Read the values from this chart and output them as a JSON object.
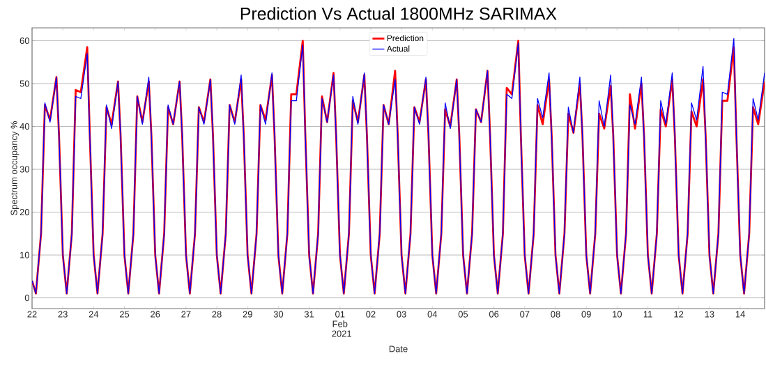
{
  "chart_data": {
    "type": "line",
    "title": "Prediction Vs Actual 1800MHz SARIMAX",
    "xlabel": "Date",
    "ylabel": "Spectrum occupancy %",
    "x": [
      "2021-01-22T00:00",
      "2021-01-22T03:00",
      "2021-01-22T07:00",
      "2021-01-22T10:00",
      "2021-01-22T14:00",
      "2021-01-22T19:00",
      "2021-01-22T21:00",
      "2021-01-23T00:00",
      "2021-01-23T03:00",
      "2021-01-23T07:00",
      "2021-01-23T10:00",
      "2021-01-23T14:00",
      "2021-01-23T19:00",
      "2021-01-23T21:00",
      "2021-01-24T00:00",
      "2021-01-24T03:00",
      "2021-01-24T07:00",
      "2021-01-24T10:00",
      "2021-01-24T14:00",
      "2021-01-24T19:00",
      "2021-01-24T21:00",
      "2021-01-25T00:00",
      "2021-01-25T03:00",
      "2021-01-25T07:00",
      "2021-01-25T10:00",
      "2021-01-25T14:00",
      "2021-01-25T19:00",
      "2021-01-25T21:00",
      "2021-01-26T00:00",
      "2021-01-26T03:00",
      "2021-01-26T07:00",
      "2021-01-26T10:00",
      "2021-01-26T14:00",
      "2021-01-26T19:00",
      "2021-01-26T21:00",
      "2021-01-27T00:00",
      "2021-01-27T03:00",
      "2021-01-27T07:00",
      "2021-01-27T10:00",
      "2021-01-27T14:00",
      "2021-01-27T19:00",
      "2021-01-27T21:00",
      "2021-01-28T00:00",
      "2021-01-28T03:00",
      "2021-01-28T07:00",
      "2021-01-28T10:00",
      "2021-01-28T14:00",
      "2021-01-28T19:00",
      "2021-01-28T21:00",
      "2021-01-29T00:00",
      "2021-01-29T03:00",
      "2021-01-29T07:00",
      "2021-01-29T10:00",
      "2021-01-29T14:00",
      "2021-01-29T19:00",
      "2021-01-29T21:00",
      "2021-01-30T00:00",
      "2021-01-30T03:00",
      "2021-01-30T07:00",
      "2021-01-30T10:00",
      "2021-01-30T14:00",
      "2021-01-30T19:00",
      "2021-01-30T21:00",
      "2021-01-31T00:00",
      "2021-01-31T03:00",
      "2021-01-31T07:00",
      "2021-01-31T10:00",
      "2021-01-31T14:00",
      "2021-01-31T19:00",
      "2021-01-31T21:00",
      "2021-02-01T00:00",
      "2021-02-01T03:00",
      "2021-02-01T07:00",
      "2021-02-01T10:00",
      "2021-02-01T14:00",
      "2021-02-01T19:00",
      "2021-02-01T21:00",
      "2021-02-02T00:00",
      "2021-02-02T03:00",
      "2021-02-02T07:00",
      "2021-02-02T10:00",
      "2021-02-02T14:00",
      "2021-02-02T19:00",
      "2021-02-02T21:00",
      "2021-02-03T00:00",
      "2021-02-03T03:00",
      "2021-02-03T07:00",
      "2021-02-03T10:00",
      "2021-02-03T14:00",
      "2021-02-03T19:00",
      "2021-02-03T21:00",
      "2021-02-04T00:00",
      "2021-02-04T03:00",
      "2021-02-04T07:00",
      "2021-02-04T10:00",
      "2021-02-04T14:00",
      "2021-02-04T19:00",
      "2021-02-04T21:00",
      "2021-02-05T00:00",
      "2021-02-05T03:00",
      "2021-02-05T07:00",
      "2021-02-05T10:00",
      "2021-02-05T14:00",
      "2021-02-05T19:00",
      "2021-02-05T21:00",
      "2021-02-06T00:00",
      "2021-02-06T03:00",
      "2021-02-06T07:00",
      "2021-02-06T10:00",
      "2021-02-06T14:00",
      "2021-02-06T19:00",
      "2021-02-06T21:00",
      "2021-02-07T00:00",
      "2021-02-07T03:00",
      "2021-02-07T07:00",
      "2021-02-07T10:00",
      "2021-02-07T14:00",
      "2021-02-07T19:00",
      "2021-02-07T21:00",
      "2021-02-08T00:00",
      "2021-02-08T03:00",
      "2021-02-08T07:00",
      "2021-02-08T10:00",
      "2021-02-08T14:00",
      "2021-02-08T19:00",
      "2021-02-08T21:00",
      "2021-02-09T00:00",
      "2021-02-09T03:00",
      "2021-02-09T07:00",
      "2021-02-09T10:00",
      "2021-02-09T14:00",
      "2021-02-09T19:00",
      "2021-02-09T21:00",
      "2021-02-10T00:00",
      "2021-02-10T03:00",
      "2021-02-10T07:00",
      "2021-02-10T10:00",
      "2021-02-10T14:00",
      "2021-02-10T19:00",
      "2021-02-10T21:00",
      "2021-02-11T00:00",
      "2021-02-11T03:00",
      "2021-02-11T07:00",
      "2021-02-11T10:00",
      "2021-02-11T14:00",
      "2021-02-11T19:00",
      "2021-02-11T21:00",
      "2021-02-12T00:00",
      "2021-02-12T03:00",
      "2021-02-12T07:00",
      "2021-02-12T10:00",
      "2021-02-12T14:00",
      "2021-02-12T19:00",
      "2021-02-12T21:00",
      "2021-02-13T00:00",
      "2021-02-13T03:00",
      "2021-02-13T07:00",
      "2021-02-13T10:00",
      "2021-02-13T14:00",
      "2021-02-13T19:00",
      "2021-02-13T21:00",
      "2021-02-14T00:00",
      "2021-02-14T03:00",
      "2021-02-14T07:00",
      "2021-02-14T10:00",
      "2021-02-14T14:00",
      "2021-02-14T19:00"
    ],
    "series": [
      {
        "name": "Prediction",
        "color": "#ff0000",
        "values": [
          4,
          1,
          15,
          45,
          41.5,
          51.5,
          38,
          10,
          1,
          15,
          48.5,
          48,
          58.5,
          38,
          10,
          1,
          15,
          44.5,
          40.5,
          50.5,
          38,
          10,
          1,
          15,
          47,
          41,
          50.5,
          38,
          10,
          1,
          15,
          44.5,
          40.5,
          50.5,
          38,
          10,
          1,
          15,
          44.5,
          41,
          51,
          38,
          10,
          1,
          15,
          45,
          41,
          51,
          38,
          10,
          1,
          15,
          45,
          41.5,
          52,
          38,
          10,
          1,
          15,
          47.5,
          47.5,
          60,
          38,
          10,
          1,
          15,
          47,
          41,
          52.5,
          38,
          10,
          1,
          15,
          46,
          41,
          52,
          38,
          10,
          1,
          15,
          45,
          40.5,
          53,
          38,
          10,
          1,
          15,
          44.5,
          41,
          51,
          38,
          10,
          1,
          15,
          44,
          40,
          51,
          38,
          10,
          1,
          15,
          44,
          41,
          53,
          38,
          10,
          1,
          15,
          49,
          47.5,
          60,
          38,
          10,
          1,
          15,
          45,
          40.5,
          51,
          38,
          10,
          1,
          15,
          43,
          38.5,
          50,
          38,
          10,
          1,
          15,
          43,
          39.5,
          49.5,
          38,
          10,
          1,
          15,
          47.5,
          39.5,
          50,
          38,
          10,
          1,
          15,
          44,
          40,
          51,
          38,
          10,
          1,
          15,
          43.5,
          40,
          51,
          38,
          10,
          1,
          15,
          46,
          46,
          58.5,
          38,
          10,
          1,
          15,
          44.5,
          40.5,
          50.5
        ]
      },
      {
        "name": "Actual",
        "color": "#0000ff",
        "values": [
          4,
          1,
          15,
          45.5,
          41,
          51.5,
          38,
          10,
          1,
          15,
          47,
          46.5,
          57,
          38,
          10,
          1,
          15,
          45,
          39.5,
          50.5,
          38,
          10,
          1,
          15,
          47,
          40.5,
          51.5,
          38,
          10,
          1,
          15,
          45,
          40.5,
          50.5,
          38,
          10,
          1,
          15,
          44.5,
          40.5,
          51,
          38,
          10,
          1,
          15,
          45,
          40.5,
          52,
          38,
          10,
          1,
          15,
          45,
          40.5,
          52.5,
          38,
          10,
          1,
          15,
          46,
          46,
          59,
          38,
          10,
          1,
          15,
          46.5,
          41,
          52,
          38,
          10,
          1,
          15,
          47,
          40.5,
          52.5,
          38,
          10,
          1,
          15,
          45,
          40.5,
          51,
          38,
          10,
          1,
          15,
          44.5,
          40.5,
          51.5,
          38,
          10,
          1,
          15,
          45.5,
          39.5,
          51,
          38,
          10,
          1,
          15,
          44,
          41,
          53,
          38,
          10,
          1,
          15,
          47.5,
          46.5,
          59.5,
          38,
          10,
          1,
          15,
          46.5,
          42,
          52.5,
          38,
          10,
          1,
          15,
          44.5,
          38.5,
          51.5,
          38,
          10,
          1,
          15,
          46,
          40,
          52,
          38,
          10,
          1,
          15,
          45,
          40.5,
          51.5,
          38,
          10,
          1,
          15,
          46,
          40.5,
          52.5,
          38,
          10,
          1,
          15,
          45.5,
          41.5,
          54,
          38,
          10,
          1,
          15,
          48,
          47.5,
          60.5,
          38,
          10,
          1,
          15,
          46.5,
          41.5,
          52.5
        ]
      }
    ],
    "xlim": [
      "2021-01-22T00:00",
      "2021-02-14T19:00"
    ],
    "xticks": [
      {
        "value": "2021-01-22",
        "label": "22"
      },
      {
        "value": "2021-01-23",
        "label": "23"
      },
      {
        "value": "2021-01-24",
        "label": "24"
      },
      {
        "value": "2021-01-25",
        "label": "25"
      },
      {
        "value": "2021-01-26",
        "label": "26"
      },
      {
        "value": "2021-01-27",
        "label": "27"
      },
      {
        "value": "2021-01-28",
        "label": "28"
      },
      {
        "value": "2021-01-29",
        "label": "29"
      },
      {
        "value": "2021-01-30",
        "label": "30"
      },
      {
        "value": "2021-01-31",
        "label": "31"
      },
      {
        "value": "2021-02-01",
        "label": "01 Feb 2021"
      },
      {
        "value": "2021-02-02",
        "label": "02"
      },
      {
        "value": "2021-02-03",
        "label": "03"
      },
      {
        "value": "2021-02-04",
        "label": "04"
      },
      {
        "value": "2021-02-05",
        "label": "05"
      },
      {
        "value": "2021-02-06",
        "label": "06"
      },
      {
        "value": "2021-02-07",
        "label": "07"
      },
      {
        "value": "2021-02-08",
        "label": "08"
      },
      {
        "value": "2021-02-09",
        "label": "09"
      },
      {
        "value": "2021-02-10",
        "label": "10"
      },
      {
        "value": "2021-02-11",
        "label": "11"
      },
      {
        "value": "2021-02-12",
        "label": "12"
      },
      {
        "value": "2021-02-13",
        "label": "13"
      },
      {
        "value": "2021-02-14",
        "label": "14"
      }
    ],
    "ylim": [
      -2.5,
      63
    ],
    "yticks": [
      0,
      10,
      20,
      30,
      40,
      50,
      60
    ],
    "grid": "y",
    "legend": "top"
  }
}
